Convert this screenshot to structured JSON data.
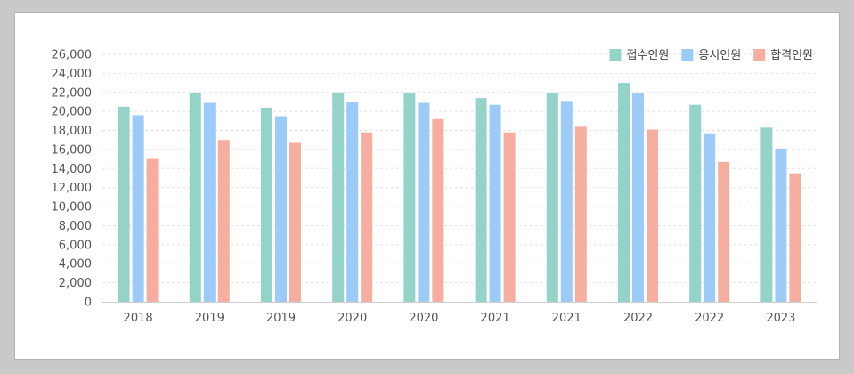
{
  "chart_data": {
    "type": "bar",
    "categories": [
      "2018",
      "2019",
      "2019",
      "2020",
      "2020",
      "2021",
      "2021",
      "2022",
      "2022",
      "2023"
    ],
    "series": [
      {
        "name": "접수인원",
        "color": "#93d3c8",
        "values": [
          20500,
          21900,
          20400,
          22000,
          21900,
          21400,
          21900,
          23000,
          20700,
          18300
        ]
      },
      {
        "name": "응시인원",
        "color": "#9ccbf8",
        "values": [
          19600,
          20900,
          19500,
          21000,
          20900,
          20700,
          21100,
          21900,
          17700,
          16100
        ]
      },
      {
        "name": "합격인원",
        "color": "#f5ae9f",
        "values": [
          15100,
          17000,
          16700,
          17800,
          19200,
          17800,
          18400,
          18100,
          14700,
          13500
        ]
      }
    ],
    "y_ticks": [
      "0",
      "2,000",
      "4,000",
      "6,000",
      "8,000",
      "10,000",
      "12,000",
      "14,000",
      "16,000",
      "18,000",
      "20,000",
      "22,000",
      "24,000",
      "26,000"
    ],
    "ylim": [
      0,
      26000
    ],
    "grid": true,
    "legend_position": "top-right",
    "title": "",
    "xlabel": "",
    "ylabel": ""
  }
}
